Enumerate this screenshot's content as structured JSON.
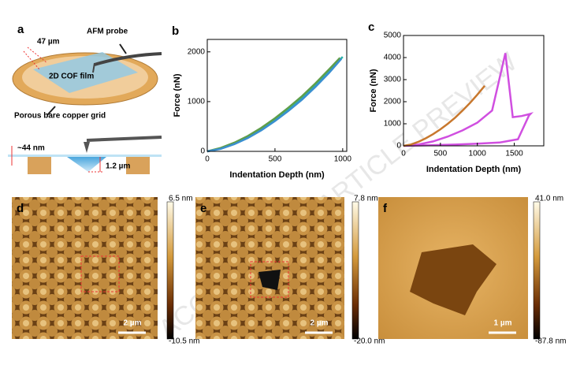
{
  "chart_data": [
    {
      "type": "line",
      "label": "b",
      "xlabel": "Indentation Depth (nm)",
      "ylabel": "Force (nN)",
      "xlim": [
        0,
        1030
      ],
      "ylim": [
        0,
        2250
      ],
      "xticks": [
        0,
        500,
        1000
      ],
      "yticks": [
        0,
        1000,
        2000
      ],
      "series": [
        {
          "color": "#2bb3a8",
          "x": [
            0,
            100,
            200,
            300,
            400,
            500,
            600,
            700,
            800,
            900,
            1000
          ],
          "values": [
            0,
            60,
            160,
            290,
            450,
            640,
            850,
            1080,
            1340,
            1620,
            1900
          ]
        },
        {
          "color": "#5f9e4a",
          "x": [
            0,
            100,
            200,
            300,
            400,
            500,
            600,
            700,
            800,
            900,
            980
          ],
          "values": [
            0,
            70,
            175,
            310,
            475,
            665,
            880,
            1110,
            1370,
            1650,
            1880
          ]
        },
        {
          "color": "#3a8fd0",
          "x": [
            0,
            100,
            200,
            300,
            400,
            500,
            600,
            700,
            800,
            900,
            990
          ],
          "values": [
            0,
            50,
            145,
            270,
            425,
            610,
            815,
            1040,
            1300,
            1580,
            1860
          ]
        }
      ]
    },
    {
      "type": "line",
      "label": "c",
      "xlabel": "Indentation Depth (nm)",
      "ylabel": "Force (nN)",
      "xlim": [
        0,
        1900
      ],
      "ylim": [
        0,
        5000
      ],
      "xticks": [
        0,
        500,
        1000,
        1500
      ],
      "yticks": [
        0,
        1000,
        2000,
        3000,
        4000,
        5000
      ],
      "series": [
        {
          "color": "#d04fe0",
          "x": [
            0,
            200,
            400,
            600,
            800,
            1000,
            1200,
            1380,
            1480,
            1600,
            1720,
            1700,
            1550,
            1300,
            1000,
            700,
            400,
            100,
            0
          ],
          "values": [
            0,
            60,
            200,
            420,
            700,
            1050,
            1600,
            4200,
            1300,
            1350,
            1450,
            1380,
            300,
            150,
            100,
            60,
            30,
            10,
            0
          ]
        },
        {
          "color": "#c8782e",
          "x": [
            0,
            100,
            200,
            300,
            400,
            500,
            600,
            700,
            800,
            900,
            1000,
            1100
          ],
          "values": [
            0,
            60,
            180,
            340,
            530,
            750,
            1000,
            1280,
            1600,
            1940,
            2320,
            2720
          ]
        }
      ]
    }
  ],
  "schematic": {
    "label": "a",
    "width_label": "47 µm",
    "probe_label": "AFM probe",
    "film_label": "2D COF film",
    "grid_label": "Porous bare copper grid",
    "thickness_label": "~44 nm",
    "depth_label": "1.2 µm"
  },
  "images": [
    {
      "label": "d",
      "cbar_max": "6.5 nm",
      "cbar_min": "-10.5 nm",
      "scale_bar": "2 µm"
    },
    {
      "label": "e",
      "cbar_max": "7.8 nm",
      "cbar_min": "-20.0 nm",
      "scale_bar": "2 µm"
    },
    {
      "label": "f",
      "cbar_max": "41.0 nm",
      "cbar_min": "-87.8 nm",
      "scale_bar": "1 µm"
    }
  ],
  "watermark": "ACCELERATED ARTICLE PREVIEW"
}
